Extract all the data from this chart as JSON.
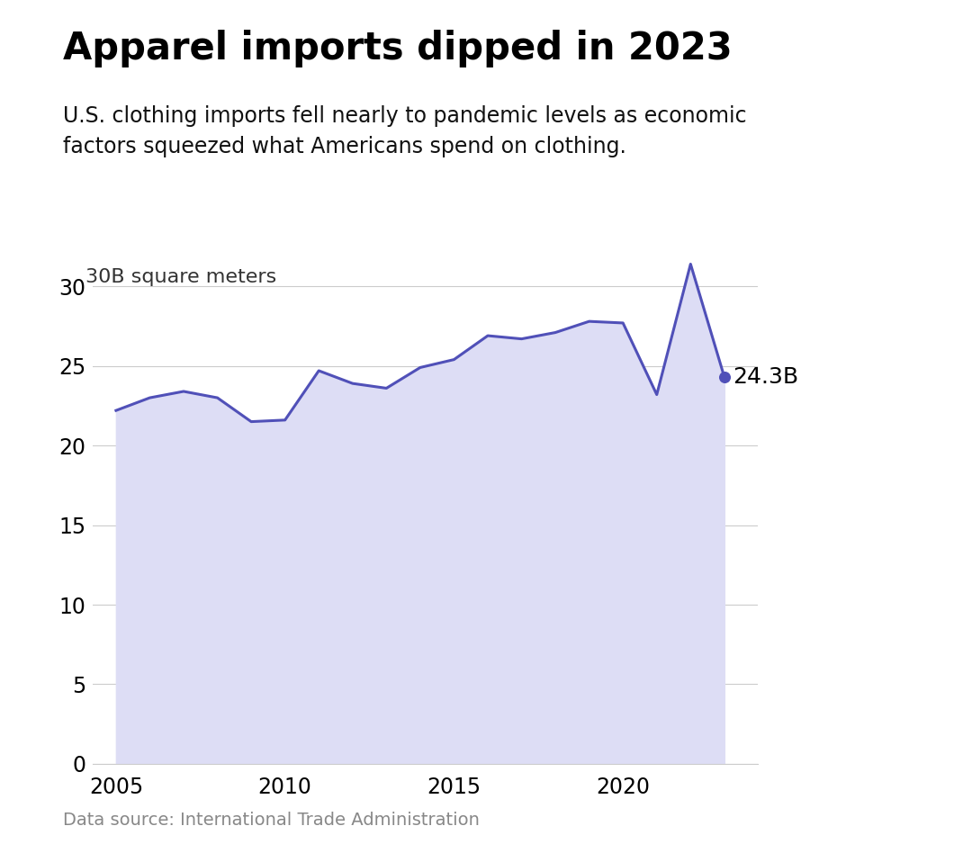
{
  "title": "Apparel imports dipped in 2023",
  "subtitle": "U.S. clothing imports fell nearly to pandemic levels as economic\nfactors squeezed what Americans spend on clothing.",
  "source": "Data source: International Trade Administration",
  "years": [
    2005,
    2006,
    2007,
    2008,
    2009,
    2010,
    2011,
    2012,
    2013,
    2014,
    2015,
    2016,
    2017,
    2018,
    2019,
    2020,
    2021,
    2022,
    2023
  ],
  "values": [
    22.2,
    23.0,
    23.4,
    23.0,
    21.5,
    21.6,
    24.7,
    23.9,
    23.6,
    24.9,
    25.4,
    26.9,
    26.7,
    27.1,
    27.8,
    27.7,
    23.2,
    31.4,
    24.3
  ],
  "line_color": "#5050b8",
  "fill_color": "#ddddf5",
  "dot_color": "#5050b8",
  "annotation_label": "24.3B",
  "annotation_year": 2023,
  "annotation_value": 24.3,
  "ylabel_text": "30B square meters",
  "ylim": [
    0,
    35
  ],
  "yticks": [
    0,
    5,
    10,
    15,
    20,
    25,
    30
  ],
  "xlim": [
    2004.3,
    2024.0
  ],
  "xticks": [
    2005,
    2010,
    2015,
    2020
  ],
  "grid_color": "#cccccc",
  "bg_color": "#ffffff",
  "title_fontsize": 30,
  "subtitle_fontsize": 17,
  "source_fontsize": 14,
  "tick_fontsize": 17,
  "annotation_fontsize": 18
}
